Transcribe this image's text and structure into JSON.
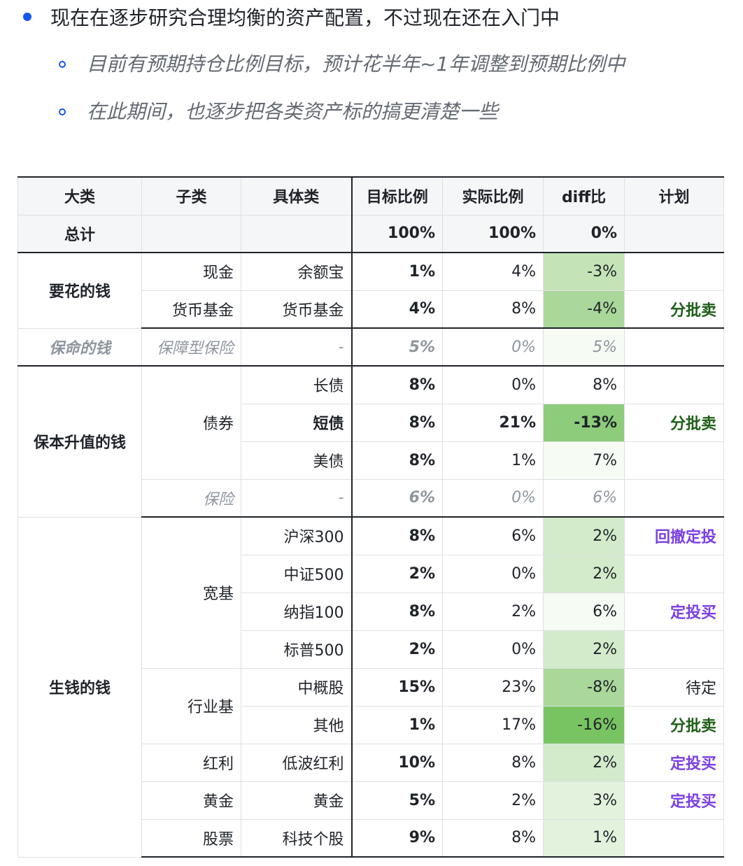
{
  "notes": {
    "main": "现在在逐步研究合理均衡的资产配置，不过现在还在入门中",
    "sub1": "目前有预期持仓比例目标，预计花半年~1年调整到预期比例中",
    "sub2": "在此期间，也逐步把各类资产标的搞更清楚一些"
  },
  "table": {
    "headers": [
      "大类",
      "子类",
      "具体类",
      "目标比例",
      "实际比例",
      "diff比",
      "计划"
    ],
    "total": {
      "label": "总计",
      "target": "100%",
      "actual": "100%",
      "diff": "0%"
    },
    "categories": [
      "要花的钱",
      "保命的钱",
      "保本升值的钱",
      "生钱的钱"
    ],
    "subcategories": [
      "现金",
      "货币基金",
      "保障型保险",
      "债券",
      "保险",
      "宽基",
      "行业基",
      "红利",
      "黄金",
      "股票"
    ],
    "rows": [
      {
        "specific": "余额宝",
        "target": "1%",
        "actual": "4%",
        "diff": "-3%",
        "plan": ""
      },
      {
        "specific": "货币基金",
        "target": "4%",
        "actual": "8%",
        "diff": "-4%",
        "plan": "分批卖"
      },
      {
        "specific": "-",
        "target": "5%",
        "actual": "0%",
        "diff": "5%",
        "plan": ""
      },
      {
        "specific": "长债",
        "target": "8%",
        "actual": "0%",
        "diff": "8%",
        "plan": ""
      },
      {
        "specific": "短债",
        "target": "8%",
        "actual": "21%",
        "diff": "-13%",
        "plan": "分批卖"
      },
      {
        "specific": "美债",
        "target": "8%",
        "actual": "1%",
        "diff": "7%",
        "plan": ""
      },
      {
        "specific": "-",
        "target": "6%",
        "actual": "0%",
        "diff": "6%",
        "plan": ""
      },
      {
        "specific": "沪深300",
        "target": "8%",
        "actual": "6%",
        "diff": "2%",
        "plan": "回撤定投"
      },
      {
        "specific": "中证500",
        "target": "2%",
        "actual": "0%",
        "diff": "2%",
        "plan": ""
      },
      {
        "specific": "纳指100",
        "target": "8%",
        "actual": "2%",
        "diff": "6%",
        "plan": "定投买"
      },
      {
        "specific": "标普500",
        "target": "2%",
        "actual": "0%",
        "diff": "2%",
        "plan": ""
      },
      {
        "specific": "中概股",
        "target": "15%",
        "actual": "23%",
        "diff": "-8%",
        "plan": "待定"
      },
      {
        "specific": "其他",
        "target": "1%",
        "actual": "17%",
        "diff": "-16%",
        "plan": "分批卖"
      },
      {
        "specific": "低波红利",
        "target": "10%",
        "actual": "8%",
        "diff": "2%",
        "plan": "定投买"
      },
      {
        "specific": "黄金",
        "target": "5%",
        "actual": "2%",
        "diff": "3%",
        "plan": "定投买"
      },
      {
        "specific": "科技个股",
        "target": "9%",
        "actual": "8%",
        "diff": "1%",
        "plan": ""
      }
    ]
  },
  "colors": {
    "bullet": "#1456f0",
    "sell_plan": "#1e5e17",
    "buy_plan": "#7b3fe4",
    "diff_heat_light": "#f6fbf4",
    "diff_heat_dark": "#79c462"
  }
}
